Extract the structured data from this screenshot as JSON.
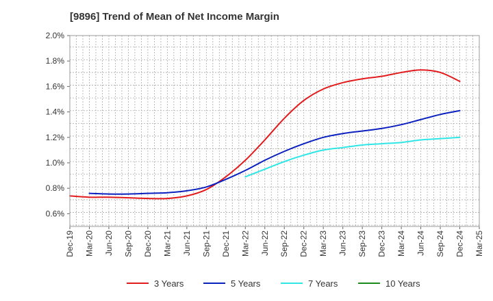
{
  "chart_data": {
    "type": "line",
    "title": "[9896]  Trend of Mean of Net Income Margin",
    "xlabel": "",
    "ylabel": "",
    "grid": true,
    "legend_position": "bottom",
    "ylim": [
      0.005,
      0.02
    ],
    "y_ticks": [
      0.006,
      0.008,
      0.01,
      0.012,
      0.014,
      0.016,
      0.018,
      0.02
    ],
    "y_tick_labels": [
      "0.6%",
      "0.8%",
      "1.0%",
      "1.2%",
      "1.4%",
      "1.6%",
      "1.8%",
      "2.0%"
    ],
    "x_tick_labels": [
      "Dec-19",
      "Mar-20",
      "Jun-20",
      "Sep-20",
      "Dec-20",
      "Mar-21",
      "Jun-21",
      "Sep-21",
      "Dec-21",
      "Mar-22",
      "Jun-22",
      "Sep-22",
      "Dec-22",
      "Mar-23",
      "Jun-23",
      "Sep-23",
      "Dec-23",
      "Mar-24",
      "Jun-24",
      "Sep-24",
      "Dec-24",
      "Mar-25"
    ],
    "series": [
      {
        "name": "3 Years",
        "color": "#e31a1c",
        "x": [
          "Dec-19",
          "Mar-20",
          "Jun-20",
          "Sep-20",
          "Dec-20",
          "Mar-21",
          "Jun-21",
          "Sep-21",
          "Dec-21",
          "Mar-22",
          "Jun-22",
          "Sep-22",
          "Dec-22",
          "Mar-23",
          "Jun-23",
          "Sep-23",
          "Dec-23",
          "Mar-24",
          "Jun-24",
          "Sep-24",
          "Dec-24"
        ],
        "values": [
          0.0074,
          0.0073,
          0.0073,
          0.00725,
          0.0072,
          0.0072,
          0.0074,
          0.0079,
          0.0089,
          0.0102,
          0.0118,
          0.0135,
          0.0149,
          0.0158,
          0.0163,
          0.0166,
          0.0168,
          0.0171,
          0.0173,
          0.0171,
          0.0164
        ]
      },
      {
        "name": "5 Years",
        "color": "#0a1fbf",
        "x": [
          "Mar-20",
          "Jun-20",
          "Sep-20",
          "Dec-20",
          "Mar-21",
          "Jun-21",
          "Sep-21",
          "Dec-21",
          "Mar-22",
          "Jun-22",
          "Sep-22",
          "Dec-22",
          "Mar-23",
          "Jun-23",
          "Sep-23",
          "Dec-23",
          "Mar-24",
          "Jun-24",
          "Sep-24",
          "Dec-24"
        ],
        "values": [
          0.0076,
          0.00755,
          0.00755,
          0.0076,
          0.00765,
          0.0078,
          0.0081,
          0.0087,
          0.0094,
          0.0102,
          0.0109,
          0.0115,
          0.012,
          0.0123,
          0.0125,
          0.0127,
          0.013,
          0.0134,
          0.0138,
          0.0141
        ]
      },
      {
        "name": "7 Years",
        "color": "#2ee6e6",
        "x": [
          "Mar-22",
          "Jun-22",
          "Sep-22",
          "Dec-22",
          "Mar-23",
          "Jun-23",
          "Sep-23",
          "Dec-23",
          "Mar-24",
          "Jun-24",
          "Sep-24",
          "Dec-24"
        ],
        "values": [
          0.0089,
          0.0095,
          0.0101,
          0.0106,
          0.011,
          0.0112,
          0.0114,
          0.0115,
          0.0116,
          0.0118,
          0.0119,
          0.012
        ]
      },
      {
        "name": "10 Years",
        "color": "#1a8a1a",
        "x": [],
        "values": []
      }
    ]
  }
}
